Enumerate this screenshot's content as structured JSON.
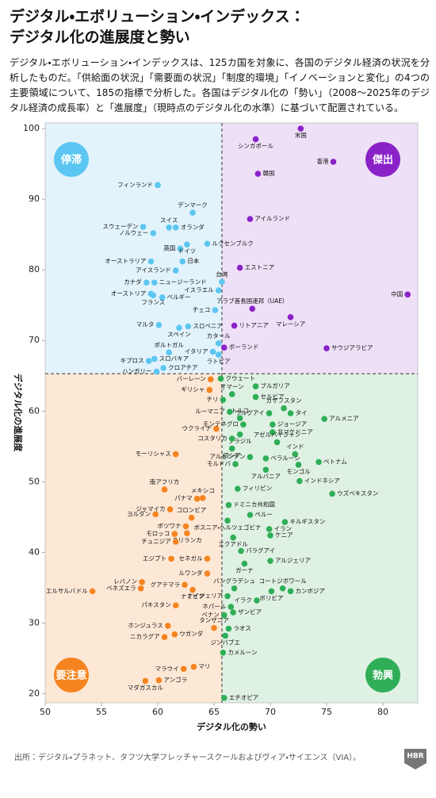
{
  "chart_data": {
    "type": "scatter",
    "title": [
      "デジタル・エボリューション・インデックス：",
      "デジタル化の進展度と勢い"
    ],
    "description": "デジタル・エボリューション・インデックスは、125カ国を対象に、各国のデジタル経済の状況を分析したものだ。「供給面の状況」「需要面の状況」「制度的環境」「イノベーションと変化」の4つの主要領域について、185の指標で分析した。各国はデジタル化の「勢い」（2008～2025年のデジタル経済の成長率）と「進展度」（現時点のデジタル化の水準）に基づいて配置されている。",
    "x_label": "デジタル化の勢い",
    "y_label": "デジタル化の進展度",
    "source": "出所：デジタル・プラネット、タフツ大学フレッチャースクールおよびヴィア・サイエンス（VIA）。",
    "logo": "HBR",
    "xlim": [
      50,
      83.1
    ],
    "ylim": [
      18.7,
      100.8
    ],
    "xticks": [
      50,
      55,
      60,
      65,
      70,
      75,
      80
    ],
    "yticks": [
      20,
      30,
      40,
      50,
      60,
      70,
      80,
      90,
      100
    ],
    "dividers": {
      "x": 65.7,
      "y": 65.3
    },
    "series": [
      {
        "name": "停滞",
        "color": "#5cc6f2",
        "background": "#e2f3fb",
        "labels": [
          "フィンランド",
          "デンマーク",
          "スウェーデン",
          "スイス",
          "オランダ",
          "ノルウェー",
          "英国",
          "ルクセンブルク",
          "ドイツ",
          "日本",
          "オーストラリア",
          "アイスランド",
          "台湾",
          "カナダ",
          "ニュージーランド",
          "イスラエル",
          "オーストリア",
          "フランス",
          "ベルギー",
          "チェコ",
          "マルタ",
          "スペイン",
          "スロベニア",
          "カタール",
          "イタリア",
          "ポルトガル",
          "キプロス",
          "スロバキア",
          "ラトビア",
          "ハンガリー",
          "クロアチア"
        ],
        "x": [
          60.0,
          63.1,
          58.7,
          61.0,
          61.6,
          59.6,
          62.0,
          64.4,
          62.6,
          62.2,
          59.4,
          61.6,
          65.7,
          59.0,
          59.7,
          65.4,
          59.4,
          59.6,
          60.4,
          65.1,
          60.1,
          61.9,
          62.7,
          65.4,
          64.9,
          61.0,
          59.2,
          59.7,
          65.4,
          59.9,
          60.5
        ],
        "values": [
          92.0,
          88.1,
          86.1,
          86.0,
          86.0,
          85.2,
          83.0,
          83.7,
          83.6,
          81.2,
          81.2,
          79.9,
          78.3,
          78.2,
          78.2,
          77.1,
          76.6,
          76.4,
          76.1,
          74.3,
          72.2,
          71.8,
          72.0,
          69.6,
          68.4,
          68.3,
          67.1,
          67.4,
          68.0,
          65.6,
          66.1
        ]
      },
      {
        "name": "傑出",
        "color": "#8a22c8",
        "background": "#eee0f6",
        "labels": [
          "米国",
          "シンガポール",
          "香港",
          "韓国",
          "アイルランド",
          "エストニア",
          "中国",
          "アラブ首長国連邦（UAE）",
          "マレーシア",
          "リトアニア",
          "サウジアラビア",
          "ポーランド"
        ],
        "x": [
          72.7,
          68.7,
          75.6,
          68.9,
          68.2,
          67.3,
          82.2,
          68.4,
          71.8,
          66.8,
          75.0,
          65.9
        ],
        "values": [
          100.0,
          98.5,
          95.3,
          93.6,
          87.2,
          80.3,
          76.5,
          74.5,
          73.3,
          72.1,
          68.9,
          69.0
        ]
      },
      {
        "name": "要注意",
        "color": "#f5841f",
        "background": "#fde8d6",
        "labels": [
          "バーレーン",
          "ギリシャ",
          "ウクライナ",
          "モーリシャス",
          "南アフリカ",
          "メキシコ",
          "パナマ",
          "ジャマイカ",
          "ヨルダン",
          "コロンビア",
          "ボツワナ",
          "モロッコ",
          "スリランカ",
          "チュニジア",
          "エジプト",
          "セネガル",
          "ルワンダ",
          "レバノン",
          "グアテマラ",
          "ベネズエラ",
          "エルサルバドル",
          "ナミビア",
          "パキスタン",
          "ホンジュラス",
          "タンザニア",
          "ニカラグア",
          "ウガンダ",
          "マラウイ",
          "マリ",
          "アンゴラ",
          "マダガスカル"
        ],
        "x": [
          64.7,
          64.6,
          65.2,
          61.6,
          60.6,
          64.0,
          63.5,
          61.1,
          59.8,
          63.0,
          62.5,
          61.5,
          62.6,
          61.6,
          61.2,
          64.4,
          64.4,
          58.6,
          62.4,
          58.5,
          54.2,
          63.1,
          61.6,
          60.9,
          65.0,
          60.6,
          61.5,
          62.3,
          63.2,
          60.1,
          58.9
        ],
        "values": [
          64.5,
          63.0,
          57.5,
          53.9,
          48.9,
          47.7,
          47.6,
          46.1,
          45.4,
          44.9,
          43.7,
          42.6,
          42.7,
          41.5,
          39.1,
          39.1,
          37.0,
          35.8,
          35.4,
          34.9,
          34.5,
          34.7,
          32.5,
          29.6,
          29.3,
          28.0,
          28.4,
          23.5,
          23.8,
          21.9,
          21.8
        ]
      },
      {
        "name": "勃興",
        "color": "#2fae57",
        "background": "#dff1e3",
        "labels": [
          "クウェート",
          "ブルガリア",
          "オマーン",
          "セルビア",
          "チリ",
          "カザフスタン",
          "タイ",
          "ルーマニア",
          "ウルグアイ",
          "トルコ",
          "アルメニア",
          "モンテネグロ",
          "ジョージア",
          "北マケドニア",
          "ブラジル",
          "コスタリカ",
          "アゼルバイジャン",
          "ロシア",
          "インド",
          "アルゼンチン",
          "ベラルーシ",
          "ベトナム",
          "モルドバ",
          "モンゴル",
          "アルバニア",
          "インドネシア",
          "フィリピン",
          "ウズベキスタン",
          "ドミニカ共和国",
          "ペルー",
          "ボスニア・ヘルツェゴビナ",
          "キルギスタン",
          "イラン",
          "ケニア",
          "エクアドル",
          "パラグアイ",
          "アルジェリア",
          "ガーナ",
          "コートジボワール",
          "バングラデシュ",
          "カンボジア",
          "ナイジェリア",
          "ボリビア",
          "イラク",
          "ネパール",
          "ザンビア",
          "ベナン",
          "ラオス",
          "ジンバブエ",
          "カメルーン",
          "エチオピア"
        ],
        "x": [
          65.6,
          68.7,
          66.6,
          68.7,
          65.8,
          71.2,
          71.8,
          66.4,
          69.9,
          67.3,
          74.8,
          67.6,
          70.2,
          70.2,
          67.3,
          66.6,
          70.6,
          66.6,
          72.2,
          68.2,
          69.6,
          74.3,
          66.9,
          72.5,
          69.6,
          72.6,
          67.1,
          75.5,
          66.3,
          68.2,
          66.2,
          71.3,
          69.9,
          70.0,
          66.7,
          67.4,
          70.0,
          67.7,
          71.1,
          66.8,
          71.8,
          66.2,
          70.1,
          68.8,
          66.5,
          66.7,
          65.9,
          66.3,
          66.0,
          65.8,
          65.9
        ],
        "values": [
          64.6,
          63.5,
          62.4,
          62.0,
          61.6,
          60.4,
          59.7,
          59.9,
          59.7,
          59.0,
          58.9,
          58.1,
          58.1,
          57.0,
          56.7,
          56.1,
          55.6,
          54.7,
          53.9,
          53.5,
          53.3,
          52.8,
          52.5,
          52.4,
          51.7,
          50.1,
          49.0,
          48.3,
          46.7,
          45.3,
          44.5,
          44.3,
          43.3,
          42.4,
          42.1,
          40.2,
          38.8,
          38.4,
          34.9,
          34.9,
          34.5,
          33.8,
          34.5,
          33.2,
          32.3,
          31.5,
          31.1,
          29.2,
          28.2,
          25.8,
          19.4
        ]
      }
    ]
  }
}
